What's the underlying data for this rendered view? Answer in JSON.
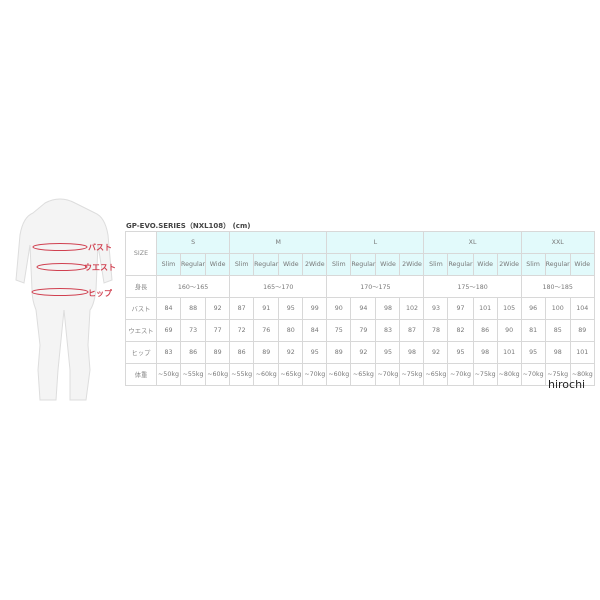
{
  "figure": {
    "labels": [
      "バスト",
      "ウエスト",
      "ヒップ"
    ],
    "accent": "#d04050"
  },
  "title": "GP-EVO.SERIES（NXL108） (cm)",
  "table": {
    "size_label": "SIZE",
    "groups": [
      {
        "name": "S",
        "fits": [
          "Slim",
          "Regular",
          "Wide"
        ],
        "height": "160～165",
        "bust": [
          "84",
          "88",
          "92"
        ],
        "waist": [
          "69",
          "73",
          "77"
        ],
        "hip": [
          "83",
          "86",
          "89"
        ],
        "weight": [
          "~50kg",
          "~55kg",
          "~60kg"
        ]
      },
      {
        "name": "M",
        "fits": [
          "Slim",
          "Regular",
          "Wide",
          "2Wide"
        ],
        "height": "165～170",
        "bust": [
          "87",
          "91",
          "95",
          "99"
        ],
        "waist": [
          "72",
          "76",
          "80",
          "84"
        ],
        "hip": [
          "86",
          "89",
          "92",
          "95"
        ],
        "weight": [
          "~55kg",
          "~60kg",
          "~65kg",
          "~70kg"
        ]
      },
      {
        "name": "L",
        "fits": [
          "Slim",
          "Regular",
          "Wide",
          "2Wide"
        ],
        "height": "170～175",
        "bust": [
          "90",
          "94",
          "98",
          "102"
        ],
        "waist": [
          "75",
          "79",
          "83",
          "87"
        ],
        "hip": [
          "89",
          "92",
          "95",
          "98"
        ],
        "weight": [
          "~60kg",
          "~65kg",
          "~70kg",
          "~75kg"
        ]
      },
      {
        "name": "XL",
        "fits": [
          "Slim",
          "Regular",
          "Wide",
          "2Wide"
        ],
        "height": "175～180",
        "bust": [
          "93",
          "97",
          "101",
          "105"
        ],
        "waist": [
          "78",
          "82",
          "86",
          "90"
        ],
        "hip": [
          "92",
          "95",
          "98",
          "101"
        ],
        "weight": [
          "~65kg",
          "~70kg",
          "~75kg",
          "~80kg"
        ]
      },
      {
        "name": "XXL",
        "fits": [
          "Slim",
          "Regular",
          "Wide"
        ],
        "height": "180～185",
        "bust": [
          "96",
          "100",
          "104"
        ],
        "waist": [
          "81",
          "85",
          "89"
        ],
        "hip": [
          "95",
          "98",
          "101"
        ],
        "weight": [
          "~70kg",
          "~75kg",
          "~80kg"
        ]
      }
    ],
    "row_labels": {
      "height": "身長",
      "bust": "バスト",
      "waist": "ウエスト",
      "hip": "ヒップ",
      "weight": "体重"
    },
    "header_bg": "#e2fafb"
  },
  "watermark": "hirochi"
}
